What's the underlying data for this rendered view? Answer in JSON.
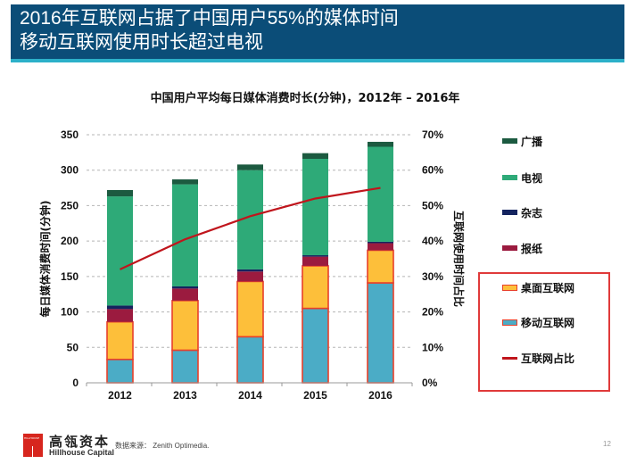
{
  "header": {
    "line1": "2016年互联网占据了中国用户55%的媒体时间",
    "line2": "移动互联网使用时长超过电视",
    "bg_color": "#0b4d78",
    "strip_color": "#2cb0c9"
  },
  "chart_data": {
    "type": "bar",
    "stacked": true,
    "title": "中国用户平均每日媒体消费时长(分钟)，2012年 – 2016年",
    "xlabel": "",
    "ylabel": "每日媒体消费时间(分钟)",
    "y2label": "互联网使用时间占比",
    "categories": [
      "2012",
      "2013",
      "2014",
      "2015",
      "2016"
    ],
    "ylim": [
      0,
      350
    ],
    "yticks": [
      "0",
      "50",
      "100",
      "150",
      "200",
      "250",
      "300",
      "350"
    ],
    "y2lim": [
      0,
      70
    ],
    "y2ticks": [
      "0%",
      "10%",
      "20%",
      "30%",
      "40%",
      "50%",
      "60%",
      "70%"
    ],
    "grid": true,
    "series": [
      {
        "name": "移动互联网",
        "color": "#4bacc6",
        "values": [
          33,
          46,
          65,
          105,
          141
        ]
      },
      {
        "name": "桌面互联网",
        "color": "#fdbf3a",
        "values": [
          53,
          70,
          78,
          60,
          46
        ]
      },
      {
        "name": "报纸",
        "color": "#9b1b3f",
        "values": [
          18,
          17,
          14,
          13,
          10
        ]
      },
      {
        "name": "杂志",
        "color": "#14245f",
        "values": [
          5,
          3,
          3,
          2,
          2
        ]
      },
      {
        "name": "电视",
        "color": "#2eaa78",
        "values": [
          154,
          144,
          140,
          136,
          134
        ]
      },
      {
        "name": "广播",
        "color": "#1c5a40",
        "values": [
          9,
          7,
          8,
          8,
          7
        ]
      }
    ],
    "line_series": {
      "name": "互联网占比",
      "color": "#c0151c",
      "axis": "right",
      "values": [
        32,
        40.5,
        47,
        52,
        55
      ],
      "unit": "%"
    },
    "internet_bar_outline_color": "#e8402a",
    "legend": {
      "placement": "right",
      "items": [
        {
          "label": "广播",
          "color": "#1c5a40",
          "type": "bar"
        },
        {
          "label": "电视",
          "color": "#2eaa78",
          "type": "bar"
        },
        {
          "label": "杂志",
          "color": "#14245f",
          "type": "bar"
        },
        {
          "label": "报纸",
          "color": "#9b1b3f",
          "type": "bar"
        },
        {
          "label": "桌面互联网",
          "color": "#fdbf3a",
          "type": "bar-outlined"
        },
        {
          "label": "移动互联网",
          "color": "#4bacc6",
          "type": "bar-outlined"
        },
        {
          "label": "互联网占比",
          "color": "#c0151c",
          "type": "line"
        }
      ]
    }
  },
  "footer": {
    "brand_cn": "高瓴资本",
    "brand_en": "Hillhouse Capital",
    "logo_text": "HILLHOUSE",
    "source": "数据来源： Zenith Optimedia.",
    "page_number": "12"
  }
}
